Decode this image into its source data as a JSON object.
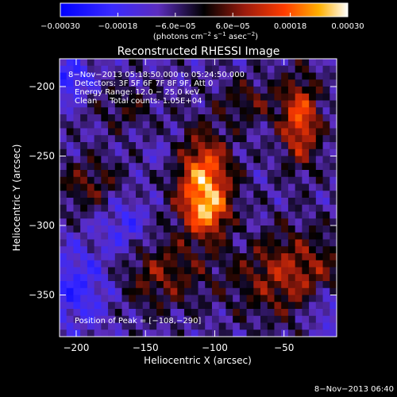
{
  "chart_data": {
    "type": "heatmap",
    "title": "Reconstructed RHESSI Image",
    "xlabel": "Heliocentric X (arcsec)",
    "ylabel": "Heliocentric Y (arcsec)",
    "xlim": [
      -212,
      -12
    ],
    "ylim": [
      -380,
      -180
    ],
    "x_ticks": [
      -200,
      -150,
      -100,
      -50
    ],
    "x_tick_labels": [
      "−200",
      "−150",
      "−100",
      "−50"
    ],
    "y_ticks": [
      -200,
      -250,
      -300,
      -350
    ],
    "y_tick_labels": [
      "−200",
      "−250",
      "−300",
      "−350"
    ],
    "annotations": [
      "8−Nov−2013 05:18:50.000 to 05:24:50.000",
      "Detectors: 3F 5F 6F 7F 8F 9F, Att 0",
      "Energy Range: 12.0 − 25.0 keV",
      "Clean     Total counts: 1.05E+04"
    ],
    "peak_label": "Position of Peak = [−108,−290]",
    "peak": [
      -108,
      -290
    ],
    "colorbar": {
      "range": [
        -0.0003,
        0.0003
      ],
      "tick_labels": [
        "−0.00030",
        "−0.00018",
        "−6.0e−05",
        "6.0e−05",
        "0.00018",
        "0.00030"
      ],
      "units_text": "(photons cm",
      "units_sup1": "−2",
      "units_mid": " s",
      "units_sup2": "−1",
      "units_mid2": " asec",
      "units_sup3": "−2",
      "units_end": ")"
    },
    "sources": [
      {
        "x": -108,
        "y": -270,
        "sigma_x": 14,
        "sigma_y": 24,
        "amp": 0.00031
      },
      {
        "x": -104,
        "y": -292,
        "sigma_x": 10,
        "sigma_y": 10,
        "amp": 0.00012
      },
      {
        "x": -38,
        "y": -225,
        "sigma_x": 10,
        "sigma_y": 22,
        "amp": 0.00024
      },
      {
        "x": -45,
        "y": -335,
        "sigma_x": 30,
        "sigma_y": 22,
        "amp": 0.00017
      },
      {
        "x": -140,
        "y": -335,
        "sigma_x": 22,
        "sigma_y": 18,
        "amp": 0.00013
      },
      {
        "x": -190,
        "y": -270,
        "sigma_x": 18,
        "sigma_y": 14,
        "amp": 0.00011
      },
      {
        "x": -75,
        "y": -210,
        "sigma_x": 16,
        "sigma_y": 12,
        "amp": 0.0001
      },
      {
        "x": -165,
        "y": -215,
        "sigma_x": 16,
        "sigma_y": 12,
        "amp": 8e-05
      },
      {
        "x": -165,
        "y": -300,
        "sigma_x": 12,
        "sigma_y": 16,
        "amp": -0.0001
      },
      {
        "x": -200,
        "y": -345,
        "sigma_x": 18,
        "sigma_y": 20,
        "amp": -0.00012
      },
      {
        "x": -205,
        "y": -195,
        "sigma_x": 12,
        "sigma_y": 10,
        "amp": -0.00014
      },
      {
        "x": -20,
        "y": -360,
        "sigma_x": 10,
        "sigma_y": 12,
        "amp": -0.00012
      },
      {
        "x": -135,
        "y": -250,
        "sigma_x": 10,
        "sigma_y": 10,
        "amp": -4e-05
      },
      {
        "x": -80,
        "y": -305,
        "sigma_x": 10,
        "sigma_y": 12,
        "amp": -3e-05
      }
    ]
  },
  "footer": {
    "timestamp": "8−Nov−2013 06:40"
  }
}
